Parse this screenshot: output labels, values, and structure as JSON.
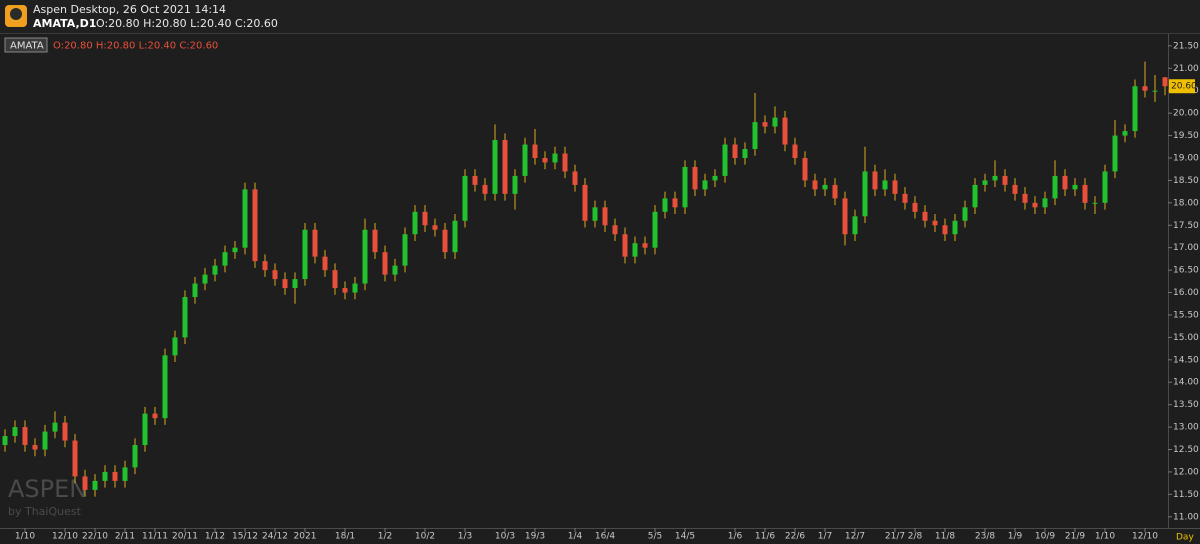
{
  "header": {
    "app_title": "Aspen Desktop, 26 Oct 2021 14:14",
    "symbol": "AMATA,D1",
    "ohlc": "O:20.80 H:20.80 L:20.40 C:20.60"
  },
  "chart_data": {
    "type": "candlestick",
    "symbol": "AMATA",
    "ohlc_label": "O:20.80 H:20.80 L:20.40 C:20.60",
    "period": "Day",
    "watermark": "ASPEN",
    "watermark_sub": "by ThaiQuest",
    "last_price": {
      "value": 20.6,
      "label": "20.60"
    },
    "up_color": "#22c12e",
    "down_color": "#e8503a",
    "wick_color": "#d9a81e",
    "last_price_color": "#f0c000",
    "ylim": [
      10.75,
      21.72
    ],
    "yticks": [
      {
        "value": 11,
        "label": "11.00"
      },
      {
        "value": 11.5,
        "label": "11.50"
      },
      {
        "value": 12,
        "label": "12.00"
      },
      {
        "value": 12.5,
        "label": "12.50"
      },
      {
        "value": 13,
        "label": "13.00"
      },
      {
        "value": 13.5,
        "label": "13.50"
      },
      {
        "value": 14,
        "label": "14.00"
      },
      {
        "value": 14.5,
        "label": "14.50"
      },
      {
        "value": 15,
        "label": "15.00"
      },
      {
        "value": 15.5,
        "label": "15.50"
      },
      {
        "value": 16,
        "label": "16.00"
      },
      {
        "value": 16.5,
        "label": "16.50"
      },
      {
        "value": 17,
        "label": "17.00"
      },
      {
        "value": 17.5,
        "label": "17.50"
      },
      {
        "value": 18,
        "label": "18.00"
      },
      {
        "value": 18.5,
        "label": "18.50"
      },
      {
        "value": 19,
        "label": "19.00"
      },
      {
        "value": 19.5,
        "label": "19.50"
      },
      {
        "value": 20,
        "label": "20.00"
      },
      {
        "value": 20.5,
        "label": "20.50"
      },
      {
        "value": 21,
        "label": "21.00"
      },
      {
        "value": 21.5,
        "label": "21.50"
      }
    ],
    "categories": [
      null,
      null,
      "1/10",
      null,
      null,
      null,
      "12/10",
      null,
      null,
      "22/10",
      null,
      null,
      "2/11",
      null,
      null,
      "11/11",
      null,
      null,
      "20/11",
      null,
      null,
      "1/12",
      null,
      null,
      "15/12",
      null,
      null,
      "24/12",
      null,
      null,
      "2021",
      null,
      null,
      null,
      "18/1",
      null,
      null,
      null,
      "1/2",
      null,
      null,
      null,
      "10/2",
      null,
      null,
      null,
      "1/3",
      null,
      null,
      null,
      "10/3",
      null,
      null,
      "19/3",
      null,
      null,
      null,
      "1/4",
      null,
      null,
      "16/4",
      null,
      null,
      null,
      null,
      "5/5",
      null,
      null,
      "14/5",
      null,
      null,
      null,
      null,
      "1/6",
      null,
      null,
      "11/6",
      null,
      null,
      "22/6",
      null,
      null,
      "1/7",
      null,
      null,
      "12/7",
      null,
      null,
      null,
      "21/7",
      null,
      "2/8",
      null,
      null,
      "11/8",
      null,
      null,
      null,
      "23/8",
      null,
      null,
      "1/9",
      null,
      null,
      "10/9",
      null,
      null,
      "21/9",
      null,
      null,
      "1/10",
      null,
      null,
      null,
      "12/10",
      null,
      null
    ],
    "open": [
      12.6,
      12.8,
      13.0,
      12.6,
      12.5,
      12.9,
      13.1,
      12.7,
      11.9,
      11.6,
      11.8,
      12.0,
      11.8,
      12.1,
      12.6,
      13.3,
      13.2,
      14.6,
      15.0,
      15.9,
      16.2,
      16.4,
      16.6,
      16.9,
      17.0,
      18.3,
      16.7,
      16.5,
      16.3,
      16.1,
      16.3,
      17.4,
      16.8,
      16.5,
      16.1,
      16.0,
      16.2,
      17.4,
      16.9,
      16.4,
      16.6,
      17.3,
      17.8,
      17.5,
      17.4,
      16.9,
      17.6,
      18.6,
      18.4,
      18.2,
      19.4,
      18.2,
      18.6,
      19.3,
      19.0,
      18.9,
      19.1,
      18.7,
      18.4,
      17.6,
      17.9,
      17.5,
      17.3,
      16.8,
      17.1,
      17.0,
      17.8,
      18.1,
      17.9,
      18.8,
      18.3,
      18.5,
      18.6,
      19.3,
      19.0,
      19.2,
      19.8,
      19.7,
      19.9,
      19.3,
      19.0,
      18.5,
      18.3,
      18.4,
      18.1,
      17.3,
      17.7,
      18.7,
      18.3,
      18.5,
      18.2,
      18.0,
      17.8,
      17.6,
      17.5,
      17.3,
      17.6,
      17.9,
      18.4,
      18.5,
      18.6,
      18.4,
      18.2,
      18.0,
      17.9,
      18.1,
      18.6,
      18.3,
      18.4,
      18.0,
      18.0,
      18.7,
      19.5,
      19.6,
      20.6,
      20.5,
      20.8
    ],
    "high": [
      12.95,
      13.15,
      13.15,
      12.75,
      13.05,
      13.35,
      13.25,
      12.85,
      12.05,
      11.95,
      12.15,
      12.15,
      12.25,
      12.75,
      13.45,
      13.45,
      14.75,
      15.15,
      16.05,
      16.35,
      16.55,
      16.75,
      17.05,
      17.15,
      18.45,
      18.45,
      16.85,
      16.65,
      16.45,
      16.45,
      17.55,
      17.55,
      16.95,
      16.65,
      16.25,
      16.35,
      17.65,
      17.55,
      17.05,
      16.75,
      17.45,
      17.95,
      17.95,
      17.65,
      17.55,
      17.75,
      18.75,
      18.75,
      18.55,
      19.75,
      19.55,
      18.75,
      19.45,
      19.65,
      19.15,
      19.25,
      19.25,
      18.85,
      18.55,
      18.05,
      18.05,
      17.65,
      17.45,
      17.25,
      17.25,
      17.95,
      18.25,
      18.25,
      18.95,
      18.95,
      18.65,
      18.75,
      19.45,
      19.45,
      19.35,
      20.45,
      19.95,
      20.15,
      20.05,
      19.45,
      19.15,
      18.65,
      18.55,
      18.55,
      18.25,
      17.85,
      19.25,
      18.85,
      18.75,
      18.65,
      18.35,
      18.15,
      17.95,
      17.75,
      17.65,
      17.75,
      18.05,
      18.55,
      18.65,
      18.95,
      18.75,
      18.55,
      18.35,
      18.15,
      18.25,
      18.95,
      18.75,
      18.55,
      18.55,
      18.15,
      18.85,
      19.85,
      19.75,
      20.75,
      21.15,
      20.85,
      20.8
    ],
    "low": [
      12.45,
      12.65,
      12.45,
      12.35,
      12.35,
      12.75,
      12.55,
      11.75,
      11.45,
      11.45,
      11.65,
      11.65,
      11.65,
      11.95,
      12.45,
      13.05,
      13.05,
      14.45,
      14.85,
      15.75,
      16.05,
      16.25,
      16.45,
      16.75,
      16.85,
      16.55,
      16.35,
      16.15,
      15.95,
      15.75,
      16.15,
      16.65,
      16.35,
      15.95,
      15.85,
      15.85,
      16.05,
      16.75,
      16.25,
      16.25,
      16.45,
      17.15,
      17.35,
      17.25,
      16.75,
      16.75,
      17.45,
      18.25,
      18.05,
      18.05,
      18.05,
      17.85,
      18.45,
      18.85,
      18.75,
      18.75,
      18.55,
      18.25,
      17.45,
      17.45,
      17.35,
      17.15,
      16.65,
      16.65,
      16.85,
      16.85,
      17.65,
      17.75,
      17.75,
      18.15,
      18.15,
      18.35,
      18.45,
      18.85,
      18.85,
      19.05,
      19.55,
      19.55,
      19.15,
      18.85,
      18.35,
      18.15,
      18.15,
      17.95,
      17.05,
      17.15,
      17.55,
      18.15,
      18.15,
      18.05,
      17.85,
      17.65,
      17.45,
      17.35,
      17.15,
      17.15,
      17.45,
      17.75,
      18.25,
      18.35,
      18.25,
      18.05,
      17.85,
      17.75,
      17.75,
      17.95,
      18.15,
      18.15,
      17.85,
      17.75,
      17.85,
      18.55,
      19.35,
      19.45,
      20.35,
      20.25,
      20.4
    ],
    "close": [
      12.8,
      13.0,
      12.6,
      12.5,
      12.9,
      13.1,
      12.7,
      11.9,
      11.6,
      11.8,
      12.0,
      11.8,
      12.1,
      12.6,
      13.3,
      13.2,
      14.6,
      15.0,
      15.9,
      16.2,
      16.4,
      16.6,
      16.9,
      17.0,
      18.3,
      16.7,
      16.5,
      16.3,
      16.1,
      16.3,
      17.4,
      16.8,
      16.5,
      16.1,
      16.0,
      16.2,
      17.4,
      16.9,
      16.4,
      16.6,
      17.3,
      17.8,
      17.5,
      17.4,
      16.9,
      17.6,
      18.6,
      18.4,
      18.2,
      19.4,
      18.2,
      18.6,
      19.3,
      19.0,
      18.9,
      19.1,
      18.7,
      18.4,
      17.6,
      17.9,
      17.5,
      17.3,
      16.8,
      17.1,
      17.0,
      17.8,
      18.1,
      17.9,
      18.8,
      18.3,
      18.5,
      18.6,
      19.3,
      19.0,
      19.2,
      19.8,
      19.7,
      19.9,
      19.3,
      19.0,
      18.5,
      18.3,
      18.4,
      18.1,
      17.3,
      17.7,
      18.7,
      18.3,
      18.5,
      18.2,
      18.0,
      17.8,
      17.6,
      17.5,
      17.3,
      17.6,
      17.9,
      18.4,
      18.5,
      18.6,
      18.4,
      18.2,
      18.0,
      17.9,
      18.1,
      18.6,
      18.3,
      18.4,
      18.0,
      18.0,
      18.7,
      19.5,
      19.6,
      20.6,
      20.5,
      20.5,
      20.6
    ]
  }
}
